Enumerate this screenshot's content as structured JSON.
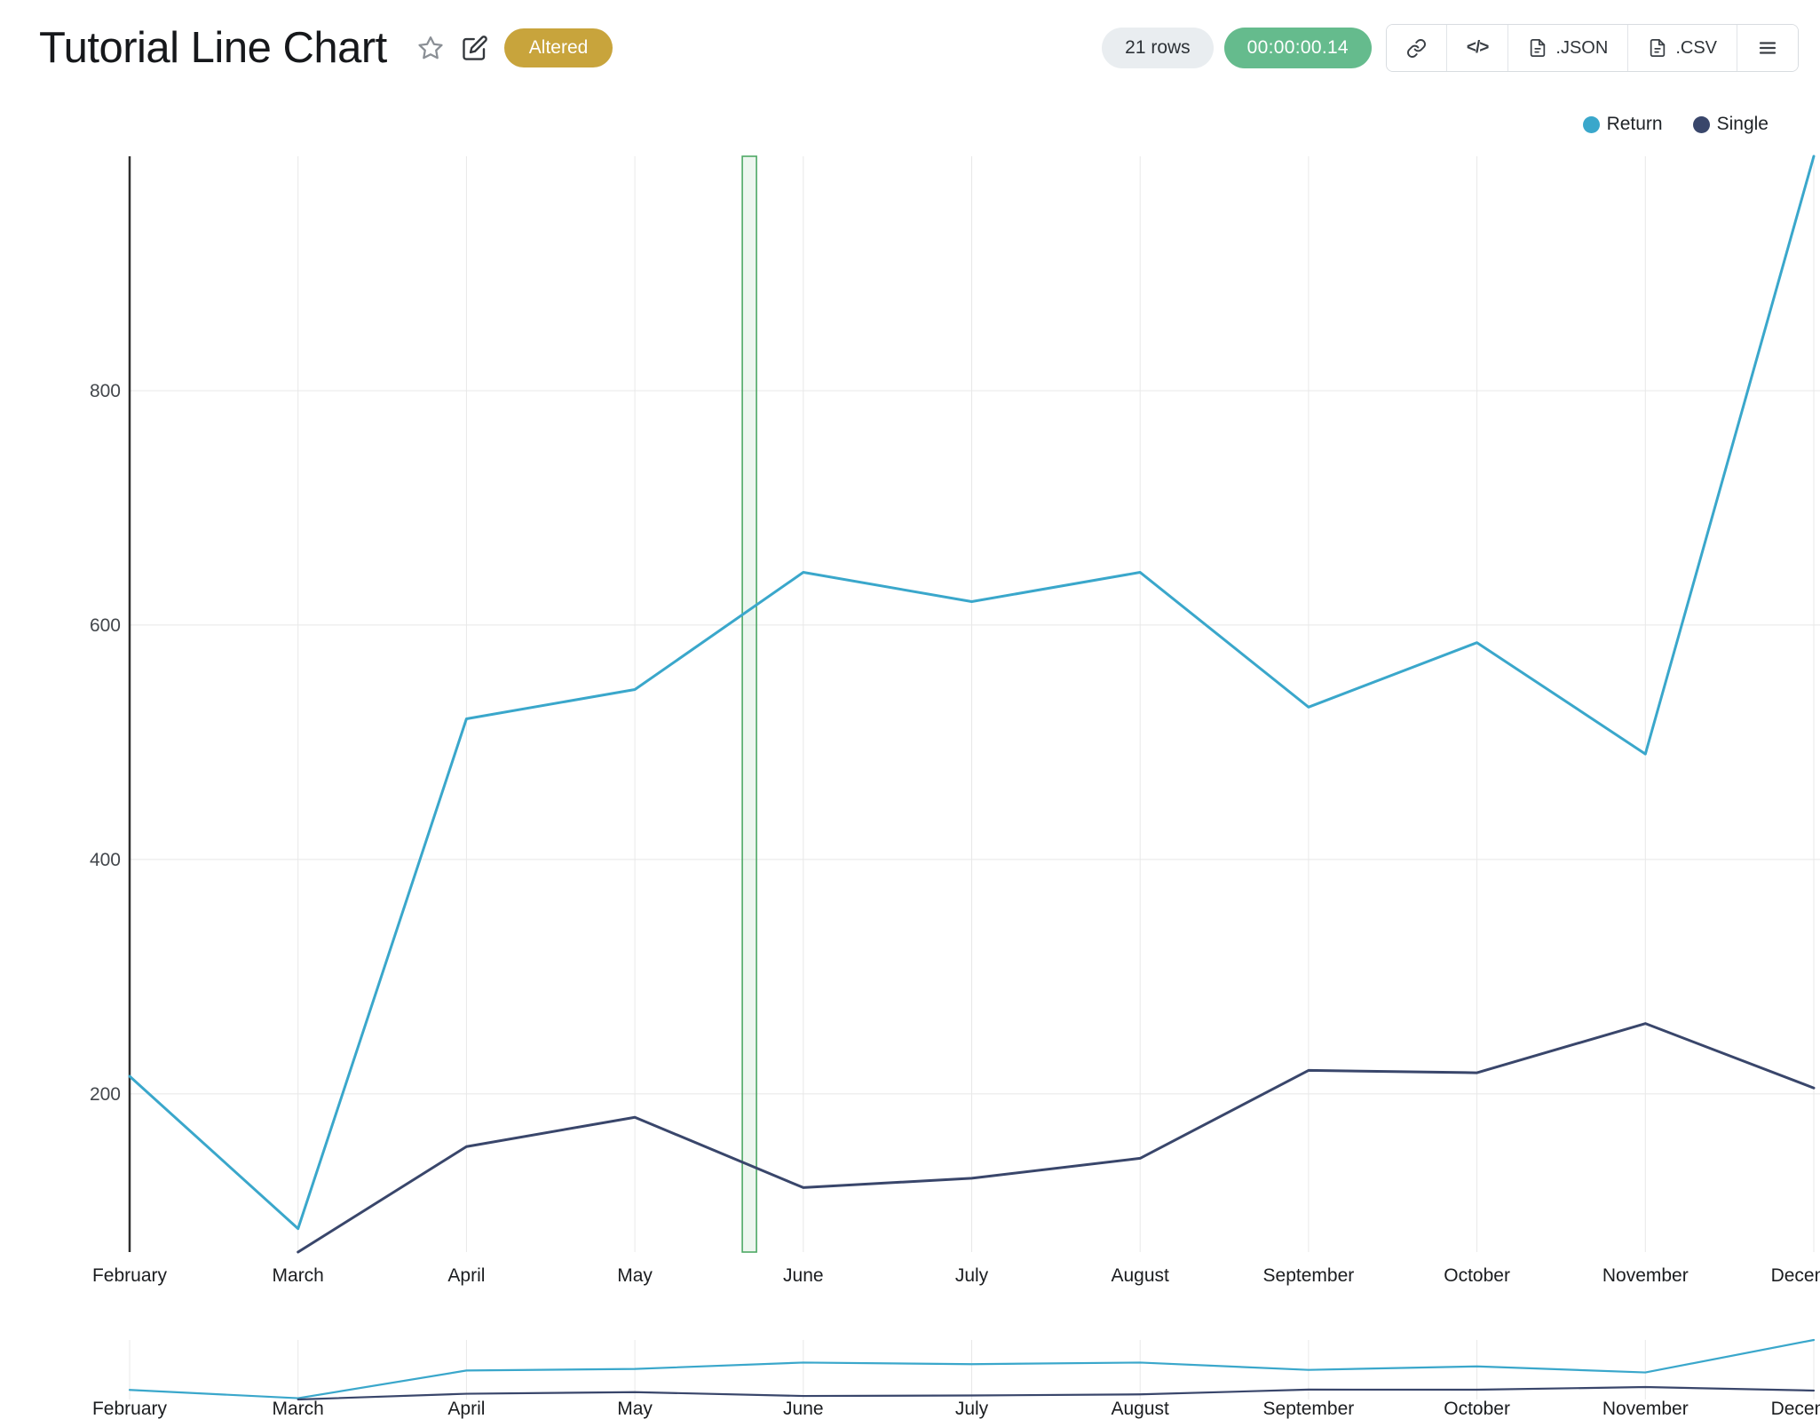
{
  "colors": {
    "altered_badge_bg": "#c8a43c",
    "rows_badge_bg": "#e9edf0",
    "timer_badge_bg": "#65bb8d",
    "highlight_band": "#4ea865",
    "return_series": "#3aa7cb",
    "single_series": "#39466b"
  },
  "header": {
    "title": "Tutorial Line Chart",
    "altered_badge": "Altered",
    "rows_badge": "21 rows",
    "timer_badge": "00:00:00.14",
    "buttons": {
      "code_label": "</>",
      "json_label": ".JSON",
      "csv_label": ".CSV"
    }
  },
  "chart_data": {
    "type": "line",
    "x": [
      "February",
      "March",
      "April",
      "May",
      "June",
      "July",
      "August",
      "September",
      "October",
      "November",
      "December"
    ],
    "series": [
      {
        "name": "Return",
        "color": "#3aa7cb",
        "values": [
          215,
          85,
          520,
          545,
          645,
          620,
          645,
          530,
          585,
          490,
          1000
        ]
      },
      {
        "name": "Single",
        "color": "#39466b",
        "values": [
          null,
          65,
          155,
          180,
          120,
          128,
          145,
          220,
          218,
          260,
          205
        ]
      }
    ],
    "ylim": [
      65,
      1000
    ],
    "yticks": [
      200,
      400,
      600,
      800
    ],
    "grid": true,
    "legend_position": "top-right",
    "legend": [
      "Return",
      "Single"
    ],
    "highlight_band": {
      "position": 3.68,
      "width": 16
    },
    "navigator": true
  }
}
